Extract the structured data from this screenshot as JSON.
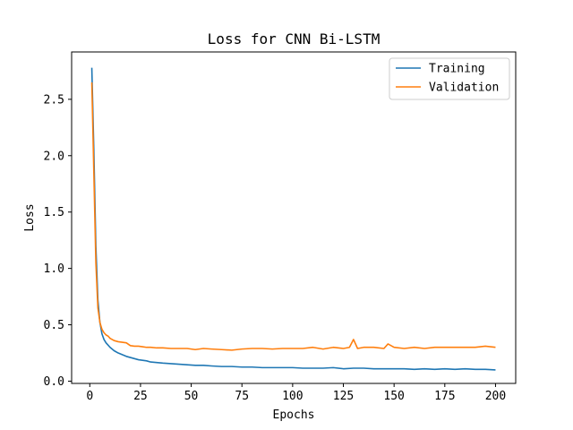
{
  "chart_data": {
    "type": "line",
    "title": "Loss for CNN Bi-LSTM",
    "xlabel": "Epochs",
    "ylabel": "Loss",
    "xlim": [
      -8.95,
      209.95
    ],
    "ylim": [
      -0.02,
      2.92
    ],
    "xticks": [
      0,
      25,
      50,
      75,
      100,
      125,
      150,
      175,
      200
    ],
    "yticks": [
      0.0,
      0.5,
      1.0,
      1.5,
      2.0,
      2.5
    ],
    "xtick_labels": [
      "0",
      "25",
      "50",
      "75",
      "100",
      "125",
      "150",
      "175",
      "200"
    ],
    "ytick_labels": [
      "0.0",
      "0.5",
      "1.0",
      "1.5",
      "2.0",
      "2.5"
    ],
    "grid": false,
    "legend_position": "top-right",
    "series": [
      {
        "name": "Training",
        "color": "#1f77b4",
        "x": [
          1,
          2,
          3,
          4,
          5,
          6,
          7,
          8,
          9,
          10,
          12,
          14,
          16,
          18,
          20,
          22,
          24,
          26,
          28,
          30,
          33,
          36,
          40,
          44,
          48,
          52,
          56,
          60,
          65,
          70,
          75,
          80,
          85,
          90,
          95,
          100,
          105,
          110,
          115,
          120,
          125,
          130,
          135,
          140,
          145,
          150,
          155,
          160,
          165,
          170,
          175,
          180,
          185,
          190,
          195,
          200
        ],
        "y": [
          2.78,
          2.05,
          1.2,
          0.72,
          0.52,
          0.42,
          0.37,
          0.34,
          0.32,
          0.3,
          0.27,
          0.25,
          0.235,
          0.22,
          0.21,
          0.2,
          0.19,
          0.185,
          0.18,
          0.17,
          0.165,
          0.16,
          0.155,
          0.15,
          0.145,
          0.14,
          0.14,
          0.135,
          0.13,
          0.13,
          0.125,
          0.125,
          0.12,
          0.12,
          0.12,
          0.12,
          0.115,
          0.115,
          0.115,
          0.12,
          0.11,
          0.115,
          0.115,
          0.11,
          0.11,
          0.11,
          0.11,
          0.105,
          0.11,
          0.105,
          0.11,
          0.105,
          0.11,
          0.105,
          0.105,
          0.1
        ]
      },
      {
        "name": "Validation",
        "color": "#ff7f0e",
        "x": [
          1,
          2,
          3,
          4,
          5,
          6,
          7,
          8,
          9,
          10,
          12,
          14,
          16,
          18,
          20,
          22,
          24,
          26,
          28,
          30,
          33,
          36,
          40,
          44,
          48,
          52,
          56,
          60,
          65,
          70,
          75,
          80,
          85,
          90,
          95,
          100,
          105,
          110,
          115,
          120,
          125,
          128,
          130,
          132,
          135,
          140,
          145,
          147,
          150,
          155,
          160,
          165,
          170,
          175,
          180,
          185,
          190,
          195,
          200
        ],
        "y": [
          2.65,
          1.85,
          1.05,
          0.65,
          0.52,
          0.46,
          0.43,
          0.41,
          0.4,
          0.38,
          0.36,
          0.35,
          0.345,
          0.34,
          0.315,
          0.31,
          0.31,
          0.305,
          0.3,
          0.3,
          0.295,
          0.295,
          0.29,
          0.29,
          0.29,
          0.28,
          0.29,
          0.285,
          0.28,
          0.275,
          0.285,
          0.29,
          0.29,
          0.285,
          0.29,
          0.29,
          0.29,
          0.3,
          0.285,
          0.3,
          0.29,
          0.3,
          0.37,
          0.29,
          0.3,
          0.3,
          0.29,
          0.33,
          0.3,
          0.29,
          0.3,
          0.29,
          0.3,
          0.3,
          0.3,
          0.3,
          0.3,
          0.31,
          0.3
        ]
      }
    ]
  }
}
